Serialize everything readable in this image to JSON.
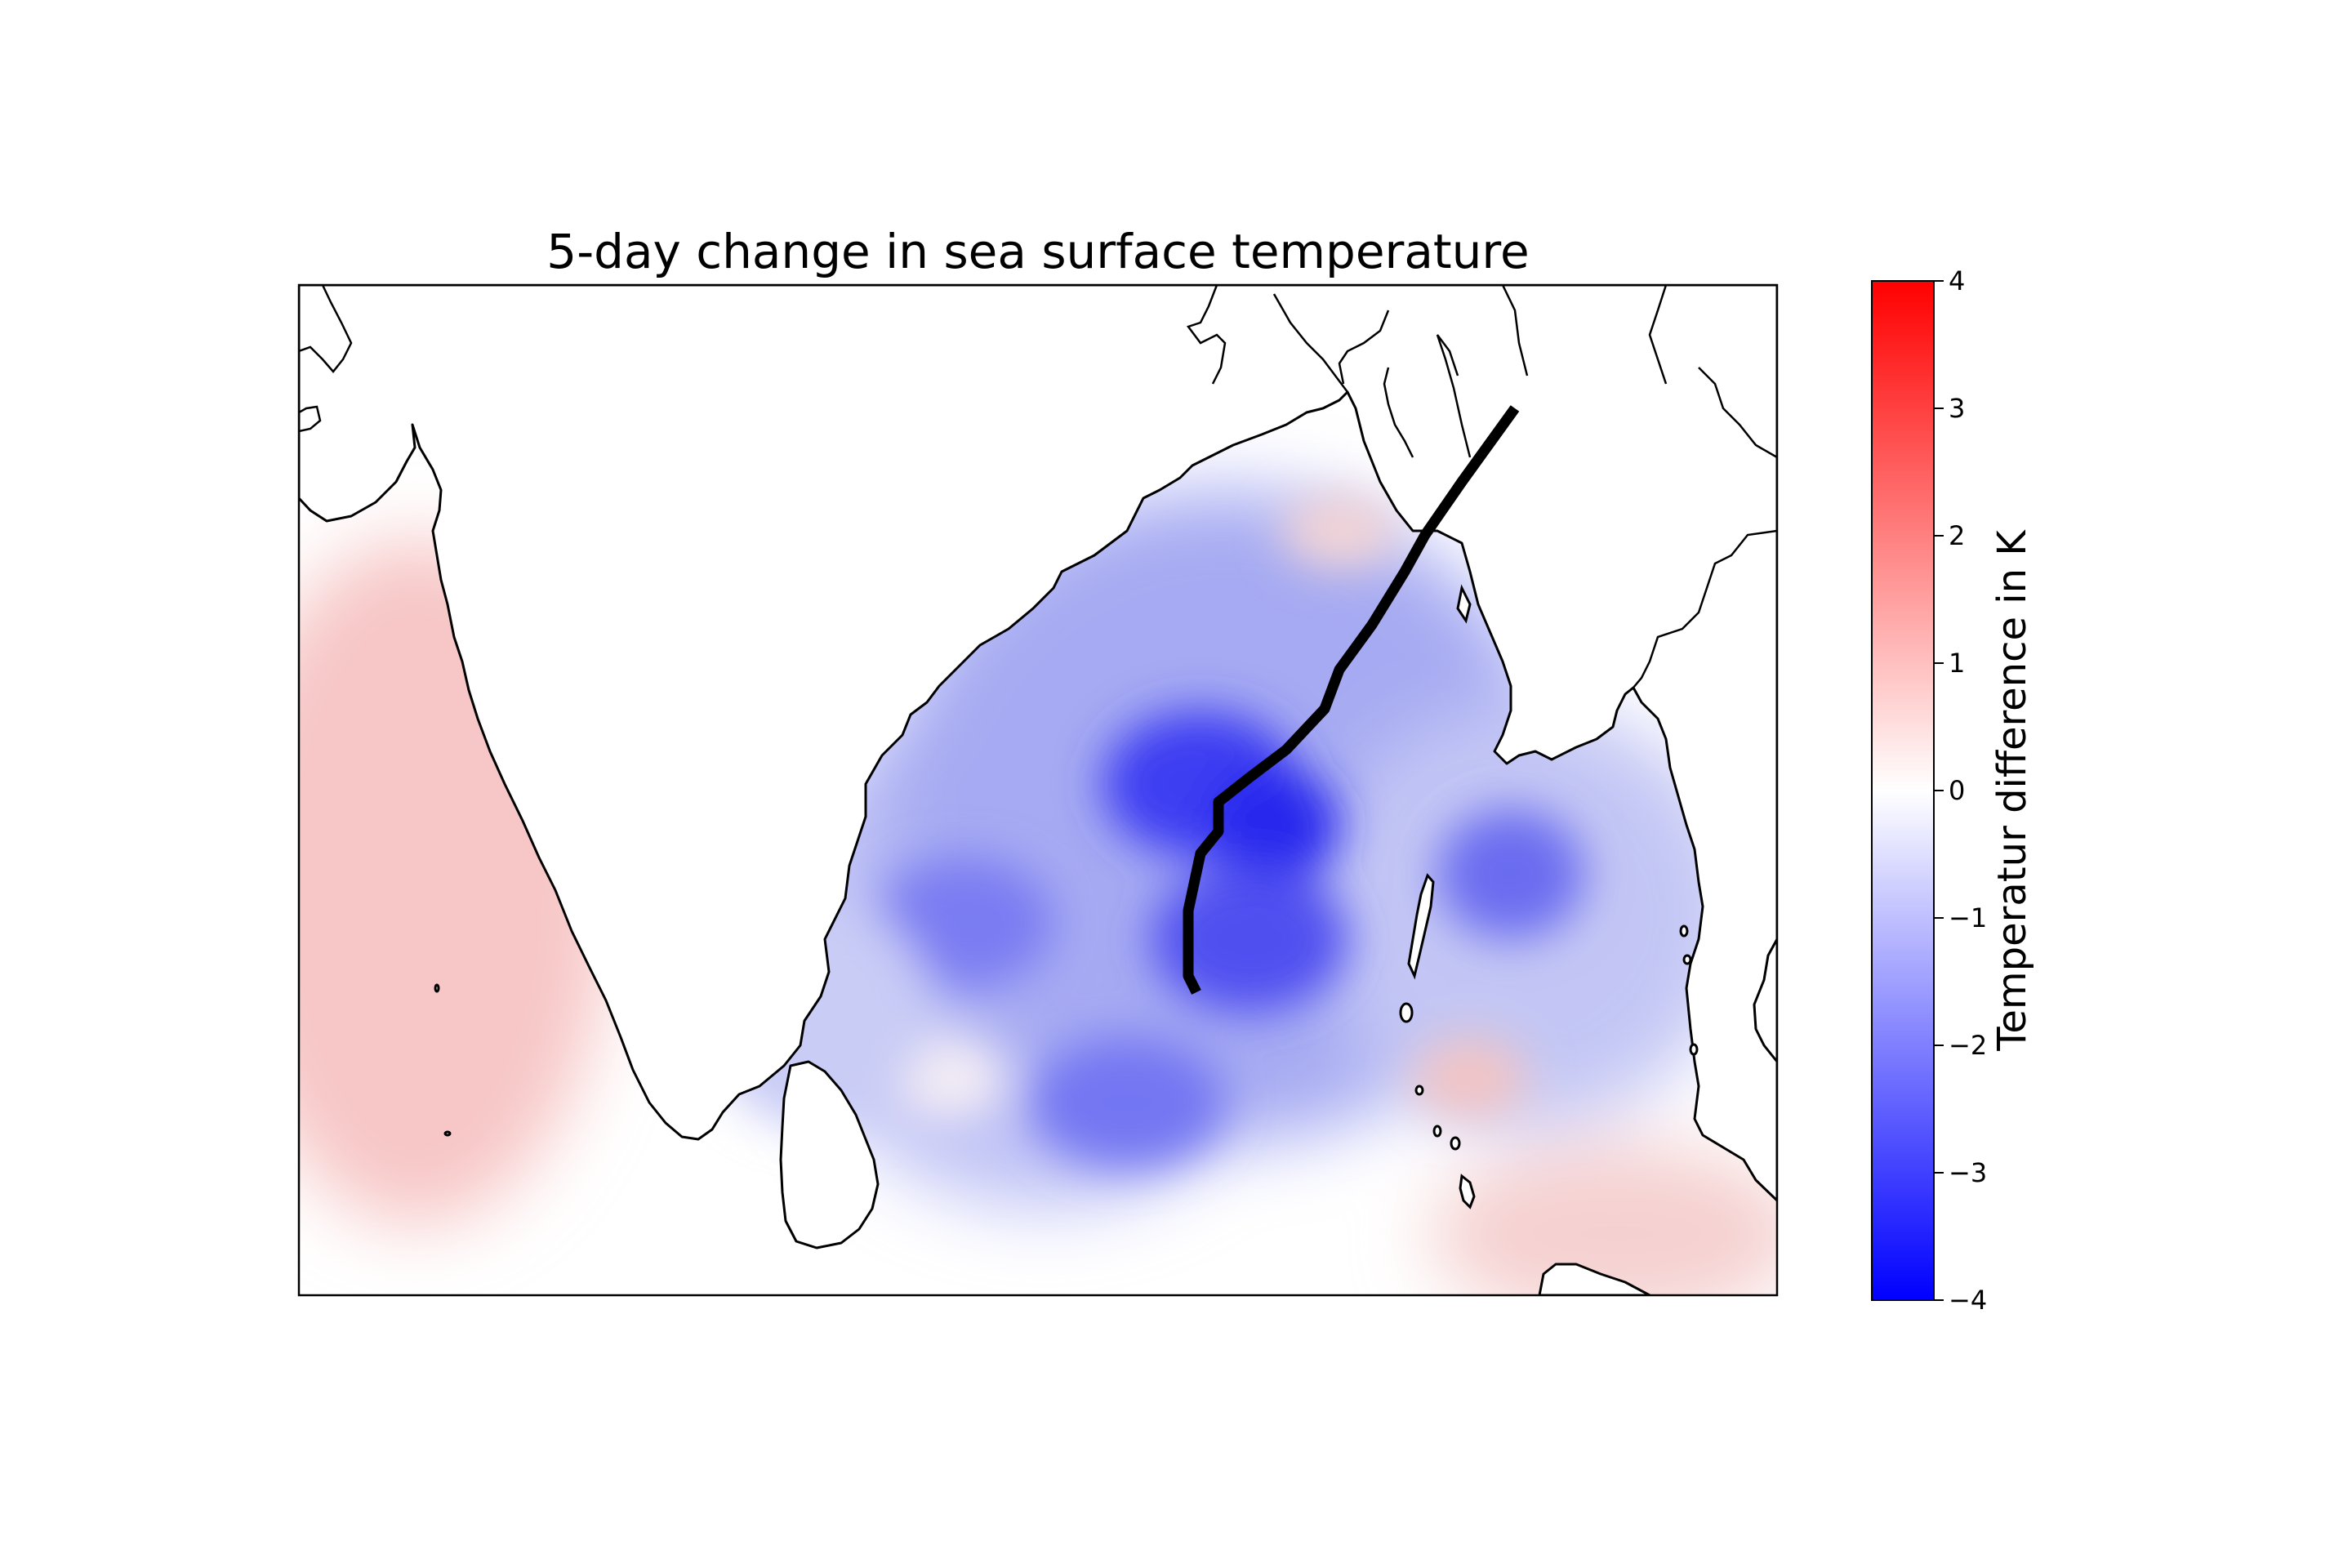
{
  "title": "5-day change in sea surface temperature",
  "colorbar": {
    "label": "Temperatur difference in K",
    "ticks": [
      "4",
      "3",
      "2",
      "1",
      "0",
      "−1",
      "−2",
      "−3",
      "−4"
    ],
    "vmin": -4,
    "vmax": 4,
    "colormap": "bwr",
    "low_color": "#0000ff",
    "mid_color": "#ffffff",
    "high_color": "#ff0000"
  },
  "map": {
    "region": "Bay of Bengal / northern Indian Ocean",
    "land_color": "#ffffff",
    "coastline_color": "#000000",
    "track_color": "#000000"
  }
}
